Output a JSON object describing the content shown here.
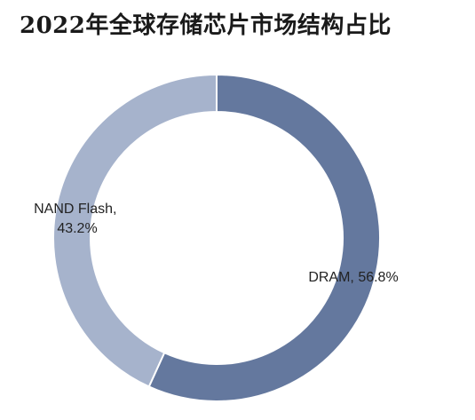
{
  "chart_data": {
    "type": "pie",
    "title": "2022年全球存储芯片市场结构占比",
    "donut": true,
    "slices": [
      {
        "label": "DRAM",
        "value": 56.8,
        "value_label": "56.8%",
        "color": "#64789e"
      },
      {
        "label": "NAND Flash",
        "value": 43.2,
        "value_label": "43.2%",
        "color": "#a6b3cc"
      }
    ]
  }
}
